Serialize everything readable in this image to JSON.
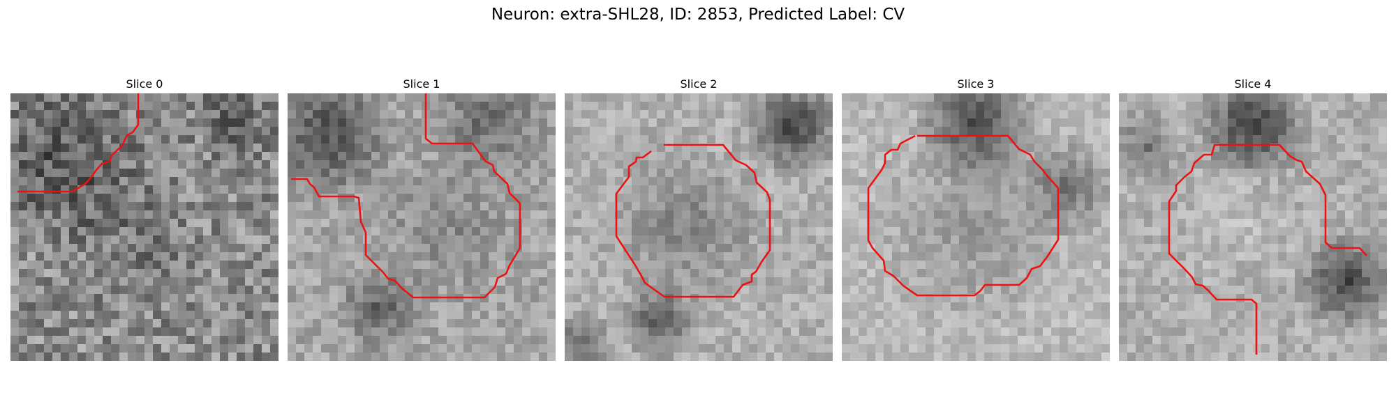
{
  "figure": {
    "title": "Neuron: extra-SHL28, ID: 2853, Predicted Label: CV",
    "contour_color": "#ee1111"
  },
  "panels": [
    {
      "title": "Slice 0",
      "seed": 11,
      "base": 140,
      "noise": 95,
      "blobs": [
        [
          0.2,
          0.25,
          0.35,
          -60
        ],
        [
          0.45,
          0.55,
          0.3,
          -25
        ],
        [
          0.85,
          0.1,
          0.2,
          -40
        ]
      ]
    },
    {
      "title": "Slice 1",
      "seed": 23,
      "base": 165,
      "noise": 55,
      "blobs": [
        [
          0.15,
          0.15,
          0.28,
          -90
        ],
        [
          0.35,
          0.8,
          0.18,
          -70
        ],
        [
          0.75,
          0.1,
          0.25,
          -60
        ],
        [
          0.6,
          0.5,
          0.3,
          -30
        ]
      ]
    },
    {
      "title": "Slice 2",
      "seed": 37,
      "base": 175,
      "noise": 50,
      "blobs": [
        [
          0.85,
          0.12,
          0.2,
          -110
        ],
        [
          0.45,
          0.5,
          0.33,
          -45
        ],
        [
          0.35,
          0.85,
          0.15,
          -90
        ],
        [
          0.05,
          0.95,
          0.15,
          -70
        ]
      ]
    },
    {
      "title": "Slice 3",
      "seed": 53,
      "base": 185,
      "noise": 45,
      "blobs": [
        [
          0.5,
          0.1,
          0.25,
          -110
        ],
        [
          0.85,
          0.35,
          0.2,
          -70
        ],
        [
          0.5,
          0.5,
          0.42,
          -35
        ]
      ]
    },
    {
      "title": "Slice 4",
      "seed": 71,
      "base": 175,
      "noise": 50,
      "blobs": [
        [
          0.5,
          0.12,
          0.22,
          -120
        ],
        [
          0.85,
          0.7,
          0.2,
          -110
        ],
        [
          0.1,
          0.2,
          0.15,
          -60
        ],
        [
          0.45,
          0.5,
          0.25,
          15
        ]
      ]
    }
  ]
}
